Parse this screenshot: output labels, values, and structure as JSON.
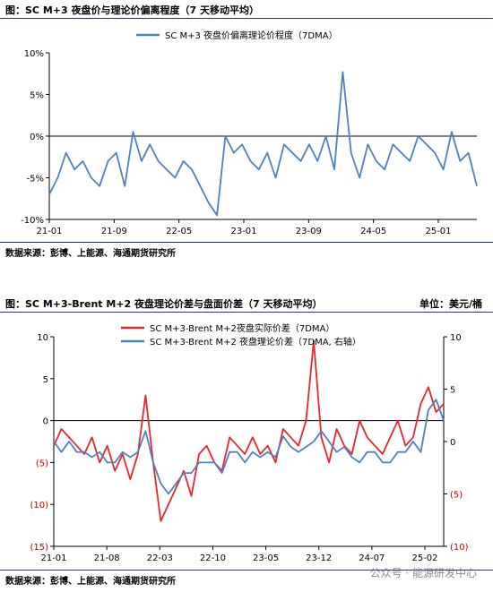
{
  "chart1": {
    "title": "图：SC M+3 夜盘价与理论价偏离程度（7 天移动平均）",
    "source": "数据来源：彭博、上能源、海通期货研究所"
  },
  "chart2": {
    "title": "图：SC M+3-Brent M+2 夜盘理论价差与盘面价差（7 天移动平均）",
    "unit": "单位：美元/桶",
    "source": "数据来源：彭博、上能源、海通期货研究所"
  },
  "watermark": "公众号 · 能源研发中心",
  "colors": {
    "red": "#e8262b",
    "blue": "#4f81bd",
    "rule": "#1a3a6e"
  },
  "chart_data": [
    {
      "type": "line",
      "title": "图：SC M+3 夜盘价与理论价偏离程度（7 天移动平均）",
      "ylim": [
        -10,
        10
      ],
      "yticks": [
        "10%",
        "5%",
        "0%",
        "-5%",
        "-10%"
      ],
      "xticks": [
        "21-01",
        "21-09",
        "22-05",
        "23-01",
        "23-09",
        "24-05",
        "25-01"
      ],
      "x_range": [
        "2021-01",
        "2025-04"
      ],
      "legend": "top-center",
      "series": [
        {
          "name": "SC M+3 夜盘价偏离理论价程度（7DMA）",
          "color": "#4f81bd",
          "x": [
            "2021-01",
            "2021-02",
            "2021-03",
            "2021-04",
            "2021-05",
            "2021-06",
            "2021-07",
            "2021-08",
            "2021-09",
            "2021-10",
            "2021-11",
            "2021-12",
            "2022-01",
            "2022-02",
            "2022-03",
            "2022-04",
            "2022-05",
            "2022-06",
            "2022-07",
            "2022-08",
            "2022-09",
            "2022-10",
            "2022-11",
            "2022-12",
            "2023-01",
            "2023-02",
            "2023-03",
            "2023-04",
            "2023-05",
            "2023-06",
            "2023-07",
            "2023-08",
            "2023-09",
            "2023-10",
            "2023-11",
            "2023-12",
            "2024-01",
            "2024-02",
            "2024-03",
            "2024-04",
            "2024-05",
            "2024-06",
            "2024-07",
            "2024-08",
            "2024-09",
            "2024-10",
            "2024-11",
            "2024-12",
            "2025-01",
            "2025-02",
            "2025-03",
            "2025-04"
          ],
          "values": [
            -7,
            -5,
            -2,
            -4,
            -3,
            -5,
            -6,
            -3,
            -2,
            -6,
            0.5,
            -3,
            -1,
            -3,
            -4,
            -5,
            -3,
            -4,
            -6,
            -8,
            -9.5,
            0,
            -2,
            -1,
            -3,
            -4,
            -2,
            -5,
            -1,
            -2,
            -3,
            -1,
            -3,
            0,
            -4,
            7.7,
            -2,
            -5,
            -1,
            -3,
            -4,
            -1,
            -2,
            -3,
            0,
            -1,
            -2,
            -4,
            0.5,
            -3,
            -2,
            -6
          ]
        }
      ]
    },
    {
      "type": "line",
      "title": "图：SC M+3-Brent M+2 夜盘理论价差与盘面价差（7 天移动平均）",
      "ylim": [
        -15,
        10
      ],
      "ylim_right": [
        -10,
        10
      ],
      "yticks_left": [
        "10",
        "5",
        "0",
        "(5)",
        "(10)",
        "(15)"
      ],
      "yticks_right": [
        "10",
        "5",
        "0",
        "(5)",
        "(10)"
      ],
      "xticks": [
        "21-01",
        "21-08",
        "22-03",
        "22-10",
        "23-05",
        "23-12",
        "24-07",
        "25-02"
      ],
      "x_range": [
        "2021-01",
        "2025-04"
      ],
      "legend": "top-center",
      "series": [
        {
          "name": "SC M+3-Brent M+2夜盘实际价差（7DMA）",
          "color": "#e8262b",
          "axis": "left",
          "x": [
            "2021-01",
            "2021-02",
            "2021-03",
            "2021-04",
            "2021-05",
            "2021-06",
            "2021-07",
            "2021-08",
            "2021-09",
            "2021-10",
            "2021-11",
            "2021-12",
            "2022-01",
            "2022-02",
            "2022-03",
            "2022-04",
            "2022-05",
            "2022-06",
            "2022-07",
            "2022-08",
            "2022-09",
            "2022-10",
            "2022-11",
            "2022-12",
            "2023-01",
            "2023-02",
            "2023-03",
            "2023-04",
            "2023-05",
            "2023-06",
            "2023-07",
            "2023-08",
            "2023-09",
            "2023-10",
            "2023-11",
            "2023-12",
            "2024-01",
            "2024-02",
            "2024-03",
            "2024-04",
            "2024-05",
            "2024-06",
            "2024-07",
            "2024-08",
            "2024-09",
            "2024-10",
            "2024-11",
            "2024-12",
            "2025-01",
            "2025-02",
            "2025-03",
            "2025-04"
          ],
          "values": [
            -3,
            -1,
            -2,
            -3,
            -4,
            -2,
            -5,
            -3,
            -6,
            -4,
            -7,
            -4,
            3,
            -5,
            -12,
            -10,
            -8,
            -6,
            -9,
            -4,
            -3,
            -5,
            -6,
            -2,
            -3,
            -4,
            -2,
            -4,
            -3,
            -5,
            -1,
            -2,
            -3,
            0,
            9.5,
            -2,
            -5,
            -1,
            -3,
            -4,
            0,
            -2,
            -3,
            -4,
            -2,
            0,
            -3,
            -2,
            2,
            4,
            1,
            2
          ]
        },
        {
          "name": "SC M+3-Brent M+2 夜盘理论价差（7DMA, 右轴）",
          "color": "#4f81bd",
          "axis": "right",
          "x": [
            "2021-01",
            "2021-02",
            "2021-03",
            "2021-04",
            "2021-05",
            "2021-06",
            "2021-07",
            "2021-08",
            "2021-09",
            "2021-10",
            "2021-11",
            "2021-12",
            "2022-01",
            "2022-02",
            "2022-03",
            "2022-04",
            "2022-05",
            "2022-06",
            "2022-07",
            "2022-08",
            "2022-09",
            "2022-10",
            "2022-11",
            "2022-12",
            "2023-01",
            "2023-02",
            "2023-03",
            "2023-04",
            "2023-05",
            "2023-06",
            "2023-07",
            "2023-08",
            "2023-09",
            "2023-10",
            "2023-11",
            "2023-12",
            "2024-01",
            "2024-02",
            "2024-03",
            "2024-04",
            "2024-05",
            "2024-06",
            "2024-07",
            "2024-08",
            "2024-09",
            "2024-10",
            "2024-11",
            "2024-12",
            "2025-01",
            "2025-02",
            "2025-03",
            "2025-04"
          ],
          "values": [
            0,
            -1,
            0,
            -1,
            -1,
            -1.5,
            -1,
            -2,
            -2,
            -1,
            -1.5,
            -1,
            1,
            -2,
            -4,
            -5,
            -4,
            -3,
            -3,
            -2,
            -2,
            -2,
            -3,
            -1,
            -1,
            -2,
            -1,
            -1.5,
            -1,
            -1.5,
            0.5,
            -0.5,
            -1,
            -0.5,
            0,
            1,
            0,
            -1,
            -0.5,
            -1.5,
            -2,
            -1,
            -1,
            -2,
            -2,
            -1,
            -1,
            0,
            -1,
            3,
            4,
            2
          ]
        }
      ]
    }
  ]
}
